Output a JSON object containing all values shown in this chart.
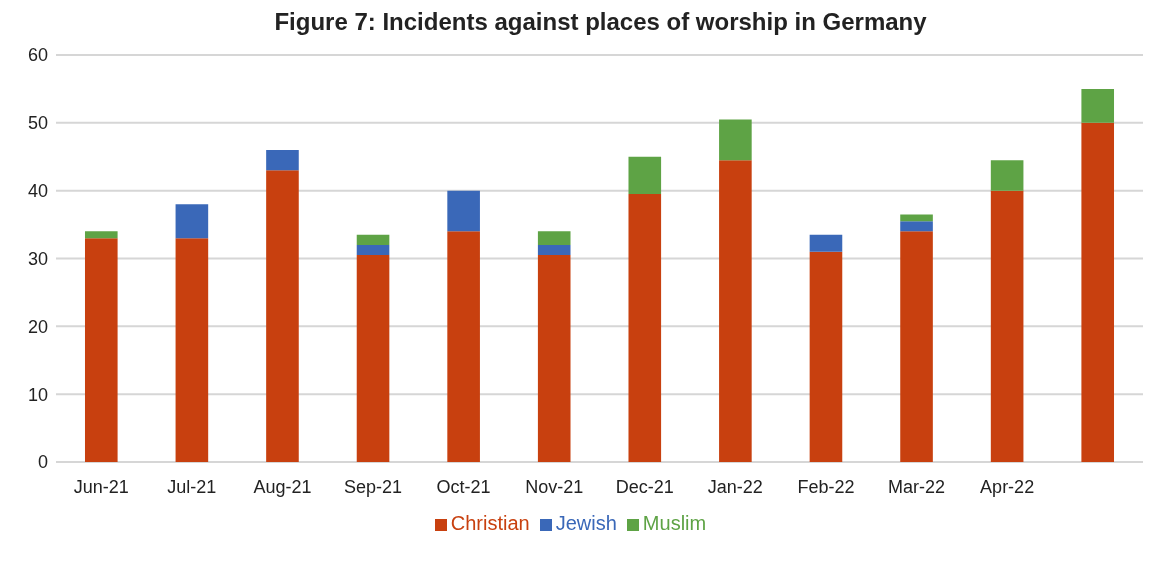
{
  "chart_data": {
    "type": "bar",
    "title": "Figure 7: Incidents against places of worship in Germany",
    "categories": [
      "Jun-21",
      "Jul-21",
      "Aug-21",
      "Sep-21",
      "Oct-21",
      "Nov-21",
      "Dec-21",
      "Jan-22",
      "Feb-22",
      "Mar-22",
      "Apr-22",
      null
    ],
    "series": [
      {
        "name": "Christian",
        "color": "#c8400f",
        "values": [
          33,
          33,
          43,
          30.5,
          34,
          30.5,
          39.5,
          44.5,
          31,
          34,
          40,
          50
        ]
      },
      {
        "name": "Jewish",
        "color": "#3a68b8",
        "values": [
          null,
          5,
          3,
          1.5,
          6,
          1.5,
          null,
          null,
          2.5,
          1.5,
          null,
          null
        ]
      },
      {
        "name": "Muslim",
        "color": "#5ea345",
        "values": [
          1,
          null,
          null,
          1.5,
          null,
          2,
          5.5,
          6,
          null,
          1,
          4.5,
          5
        ]
      }
    ],
    "stacked": true,
    "ylim": [
      0,
      60
    ],
    "yticks": [
      0,
      10,
      20,
      30,
      40,
      50,
      60
    ],
    "grid": "y",
    "legend": "bottom"
  }
}
